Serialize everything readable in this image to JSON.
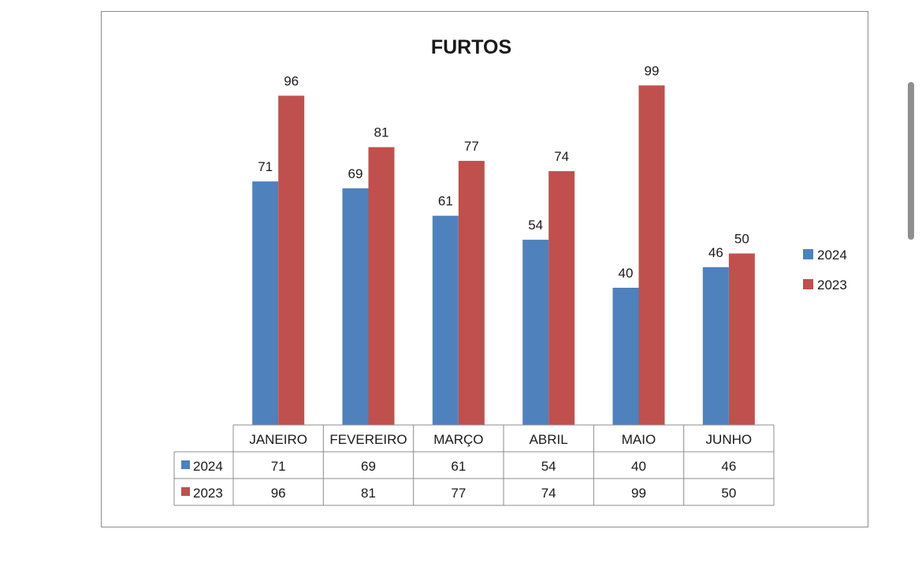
{
  "chart_data": {
    "type": "bar",
    "title": "FURTOS",
    "categories": [
      "JANEIRO",
      "FEVEREIRO",
      "MARÇO",
      "ABRIL",
      "MAIO",
      "JUNHO"
    ],
    "series": [
      {
        "name": "2024",
        "values": [
          71,
          69,
          61,
          54,
          40,
          46
        ],
        "color": "#4f81bd"
      },
      {
        "name": "2023",
        "values": [
          96,
          81,
          77,
          74,
          99,
          50
        ],
        "color": "#c0504d"
      }
    ],
    "ylim": [
      0,
      100
    ],
    "grid": false,
    "legend": "right",
    "data_table": true
  }
}
